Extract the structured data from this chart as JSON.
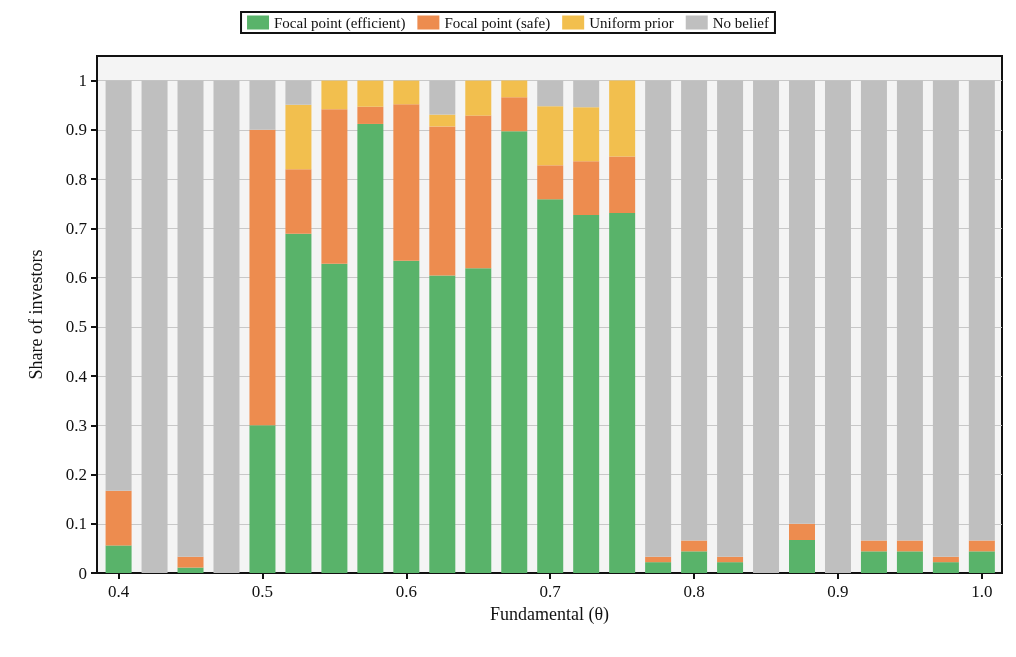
{
  "chart_data": {
    "type": "bar",
    "stacked": true,
    "xlabel": "Fundamental (θ)",
    "ylabel": "Share of investors",
    "x": [
      0.4,
      0.425,
      0.45,
      0.475,
      0.5,
      0.525,
      0.55,
      0.575,
      0.6,
      0.625,
      0.65,
      0.675,
      0.7,
      0.725,
      0.75,
      0.775,
      0.8,
      0.825,
      0.85,
      0.875,
      0.9,
      0.925,
      0.95,
      0.975,
      1.0
    ],
    "series": [
      {
        "name": "Focal point (efficient)",
        "color": "#59b36a",
        "values": [
          0.056,
          0,
          0.011,
          0,
          0.3,
          0.689,
          0.628,
          0.912,
          0.634,
          0.604,
          0.619,
          0.897,
          0.759,
          0.727,
          0.731,
          0.022,
          0.044,
          0.022,
          0,
          0.067,
          0,
          0.044,
          0.044,
          0.022,
          0.044
        ]
      },
      {
        "name": "Focal point (safe)",
        "color": "#ed8c4f",
        "values": [
          0.111,
          0,
          0.022,
          0,
          0.6,
          0.131,
          0.314,
          0.035,
          0.318,
          0.303,
          0.31,
          0.069,
          0.069,
          0.109,
          0.115,
          0.011,
          0.022,
          0.011,
          0,
          0.033,
          0,
          0.022,
          0.022,
          0.011,
          0.022
        ]
      },
      {
        "name": "Uniform prior",
        "color": "#f2bf4e",
        "values": [
          0,
          0,
          0,
          0,
          0,
          0.131,
          0.058,
          0.053,
          0.048,
          0.024,
          0.071,
          0.034,
          0.12,
          0.11,
          0.154,
          0,
          0,
          0,
          0,
          0,
          0,
          0,
          0,
          0,
          0
        ]
      },
      {
        "name": "No belief",
        "color": "#bfbfbf",
        "values": [
          0.833,
          1,
          0.967,
          1,
          0.1,
          0.049,
          0,
          0,
          0,
          0.069,
          0,
          0,
          0.052,
          0.054,
          0,
          0.967,
          0.934,
          0.967,
          1,
          0.9,
          1,
          0.934,
          0.934,
          0.967,
          0.934
        ]
      }
    ],
    "xlim": [
      0.385,
      1.014
    ],
    "xticks": [
      0.4,
      0.5,
      0.6,
      0.7,
      0.8,
      0.9,
      {
        "value": 1.0,
        "label": "1.0"
      }
    ],
    "ylim": [
      0,
      1.05
    ],
    "yticks": [
      0,
      0.1,
      0.2,
      0.3,
      0.4,
      0.5,
      0.6,
      0.7,
      0.8,
      0.9,
      1
    ],
    "grid": "y",
    "legend": "top"
  }
}
